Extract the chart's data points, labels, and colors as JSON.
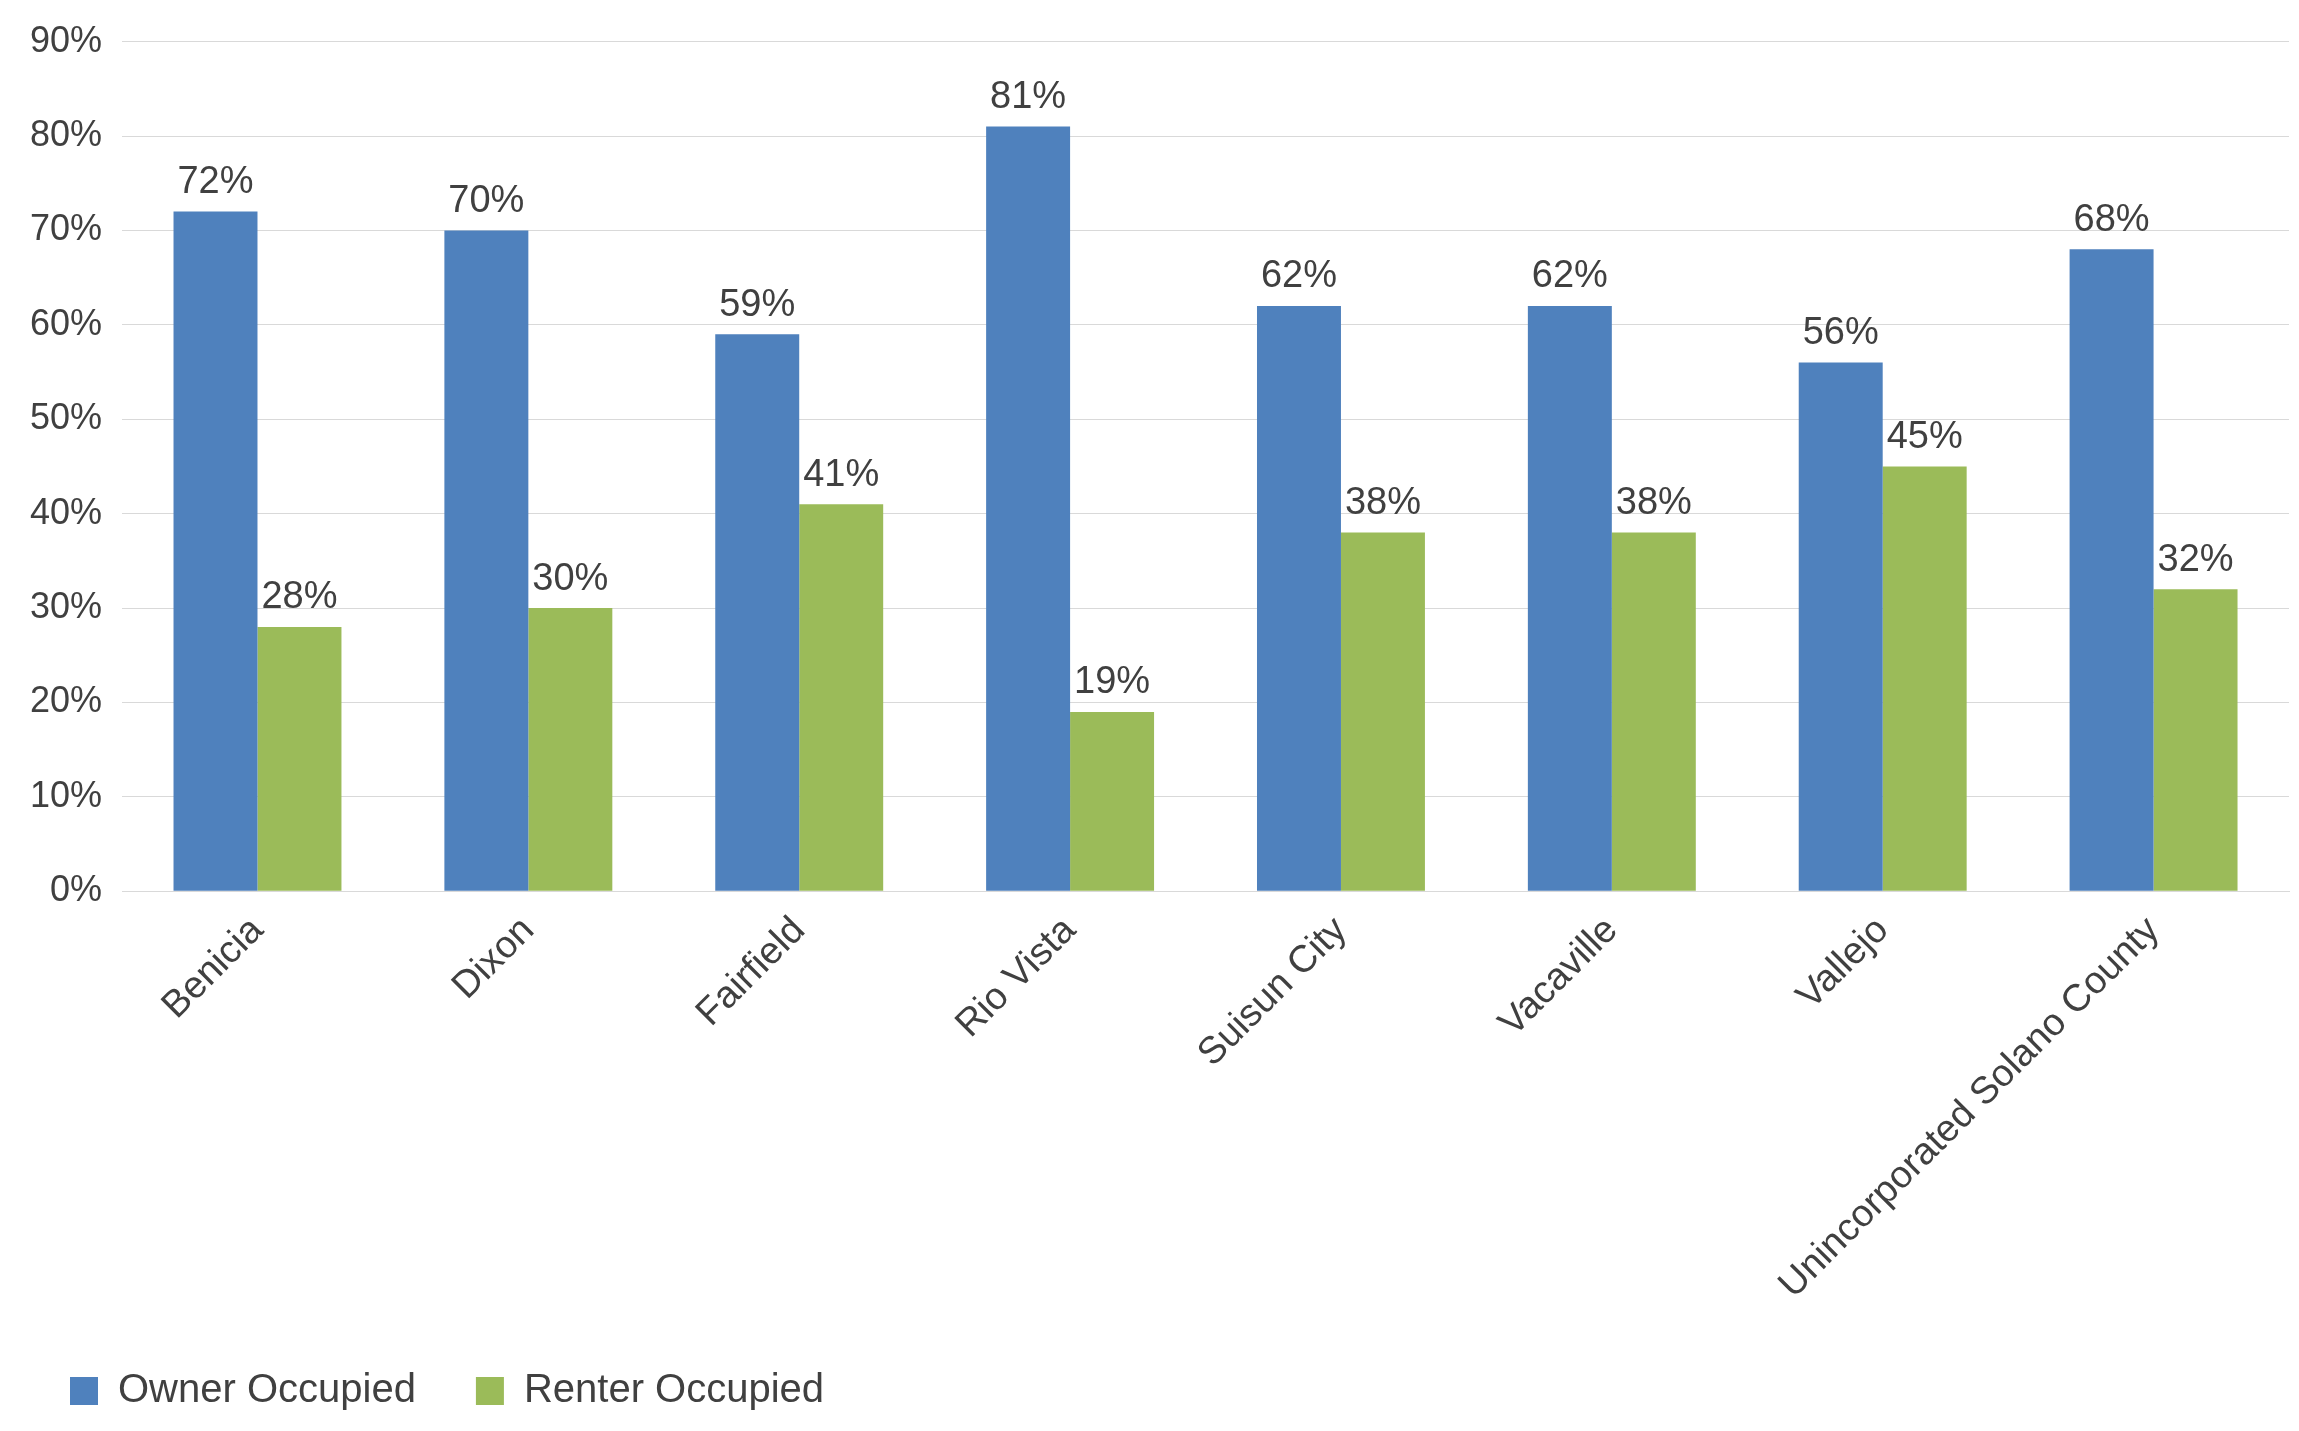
{
  "chart_data": {
    "type": "bar",
    "categories": [
      "Benicia",
      "Dixon",
      "Fairfield",
      "Rio Vista",
      "Suisun City",
      "Vacaville",
      "Vallejo",
      "Unincorporated Solano County"
    ],
    "series": [
      {
        "name": "Owner Occupied",
        "color": "#4f81bd",
        "values": [
          72,
          70,
          59,
          81,
          62,
          62,
          56,
          68
        ],
        "value_labels": [
          "72%",
          "70%",
          "59%",
          "81%",
          "62%",
          "62%",
          "56%",
          "68%"
        ]
      },
      {
        "name": "Renter Occupied",
        "color": "#9bbb59",
        "values": [
          28,
          30,
          41,
          19,
          38,
          38,
          45,
          32
        ],
        "value_labels": [
          "28%",
          "30%",
          "41%",
          "19%",
          "38%",
          "38%",
          "45%",
          "32%"
        ]
      }
    ],
    "ylim": [
      0,
      90
    ],
    "yticks": [
      {
        "value": 0,
        "label": "0%"
      },
      {
        "value": 10,
        "label": "10%"
      },
      {
        "value": 20,
        "label": "20%"
      },
      {
        "value": 30,
        "label": "30%"
      },
      {
        "value": 40,
        "label": "40%"
      },
      {
        "value": 50,
        "label": "50%"
      },
      {
        "value": 60,
        "label": "60%"
      },
      {
        "value": 70,
        "label": "70%"
      },
      {
        "value": 80,
        "label": "80%"
      },
      {
        "value": 90,
        "label": "90%"
      }
    ],
    "grid": "y",
    "legend": "bottom left"
  }
}
